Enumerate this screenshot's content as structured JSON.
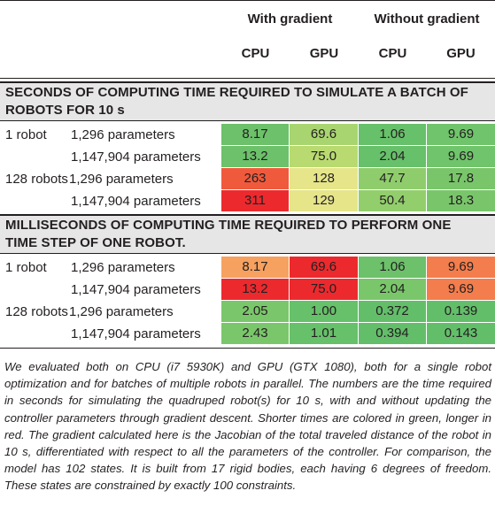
{
  "header": {
    "group_with": "With gradient",
    "group_without": "Without gradient",
    "cols": [
      "CPU",
      "GPU",
      "CPU",
      "GPU"
    ]
  },
  "sections": [
    {
      "title_line1": "SECONDS OF COMPUTING TIME REQUIRED TO SIMULATE A BATCH OF",
      "title_line2": "ROBOTS FOR 10 s",
      "rows": [
        {
          "robots": "1 robot",
          "params": "1,296 parameters",
          "values": [
            "8.17",
            "69.6",
            "1.06",
            "9.69"
          ],
          "colors": [
            "#6cc16a",
            "#a8d56f",
            "#67c06a",
            "#70c46b"
          ]
        },
        {
          "robots": "",
          "params": "1,147,904 parameters",
          "values": [
            "13.2",
            "75.0",
            "2.04",
            "9.69"
          ],
          "colors": [
            "#6cc16a",
            "#b8da70",
            "#67c06a",
            "#70c46b"
          ]
        },
        {
          "robots": "128 robots",
          "params": "1,296 parameters",
          "values": [
            "263",
            "128",
            "47.7",
            "17.8"
          ],
          "colors": [
            "#f05a3c",
            "#e6e58a",
            "#8fcd6c",
            "#79c66a"
          ]
        },
        {
          "robots": "",
          "params": "1,147,904 parameters",
          "values": [
            "311",
            "129",
            "50.4",
            "18.3"
          ],
          "colors": [
            "#ec2a2e",
            "#e6e58a",
            "#93ce6d",
            "#79c66a"
          ]
        }
      ]
    },
    {
      "title_line1": "MILLISECONDS OF COMPUTING TIME REQUIRED TO PERFORM ONE",
      "title_line2": "TIME STEP OF ONE ROBOT.",
      "rows": [
        {
          "robots": "1 robot",
          "params": "1,296 parameters",
          "values": [
            "8.17",
            "69.6",
            "1.06",
            "9.69"
          ],
          "colors": [
            "#f6a15f",
            "#ec2a2e",
            "#6cc16a",
            "#f37d4c"
          ]
        },
        {
          "robots": "",
          "params": "1,147,904 parameters",
          "values": [
            "13.2",
            "75.0",
            "2.04",
            "9.69"
          ],
          "colors": [
            "#ec2a2e",
            "#ec2a2e",
            "#7ac76b",
            "#f37d4c"
          ]
        },
        {
          "robots": "128 robots",
          "params": "1,296 parameters",
          "values": [
            "2.05",
            "1.00",
            "0.372",
            "0.139"
          ],
          "colors": [
            "#7ac76b",
            "#67c06a",
            "#63be6a",
            "#63be6a"
          ]
        },
        {
          "robots": "",
          "params": "1,147,904 parameters",
          "values": [
            "2.43",
            "1.01",
            "0.394",
            "0.143"
          ],
          "colors": [
            "#7ac76b",
            "#67c06a",
            "#63be6a",
            "#63be6a"
          ]
        }
      ]
    }
  ],
  "caption": "We evaluated both on CPU (i7 5930K) and GPU (GTX 1080), both for a single robot optimization and for batches of multiple robots in parallel. The numbers are the time required in seconds for simulating the quadruped robot(s) for 10 s, with and without updating the controller parameters through gradient descent. Shorter times are colored in green, longer in red. The gradient calculated here is the Jacobian of the total traveled distance of the robot in 10 s, differentiated with respect to all the parameters of the controller. For comparison, the model has 102 states. It is built from 17 rigid bodies, each having 6 degrees of freedom. These states are constrained by exactly 100 constraints."
}
